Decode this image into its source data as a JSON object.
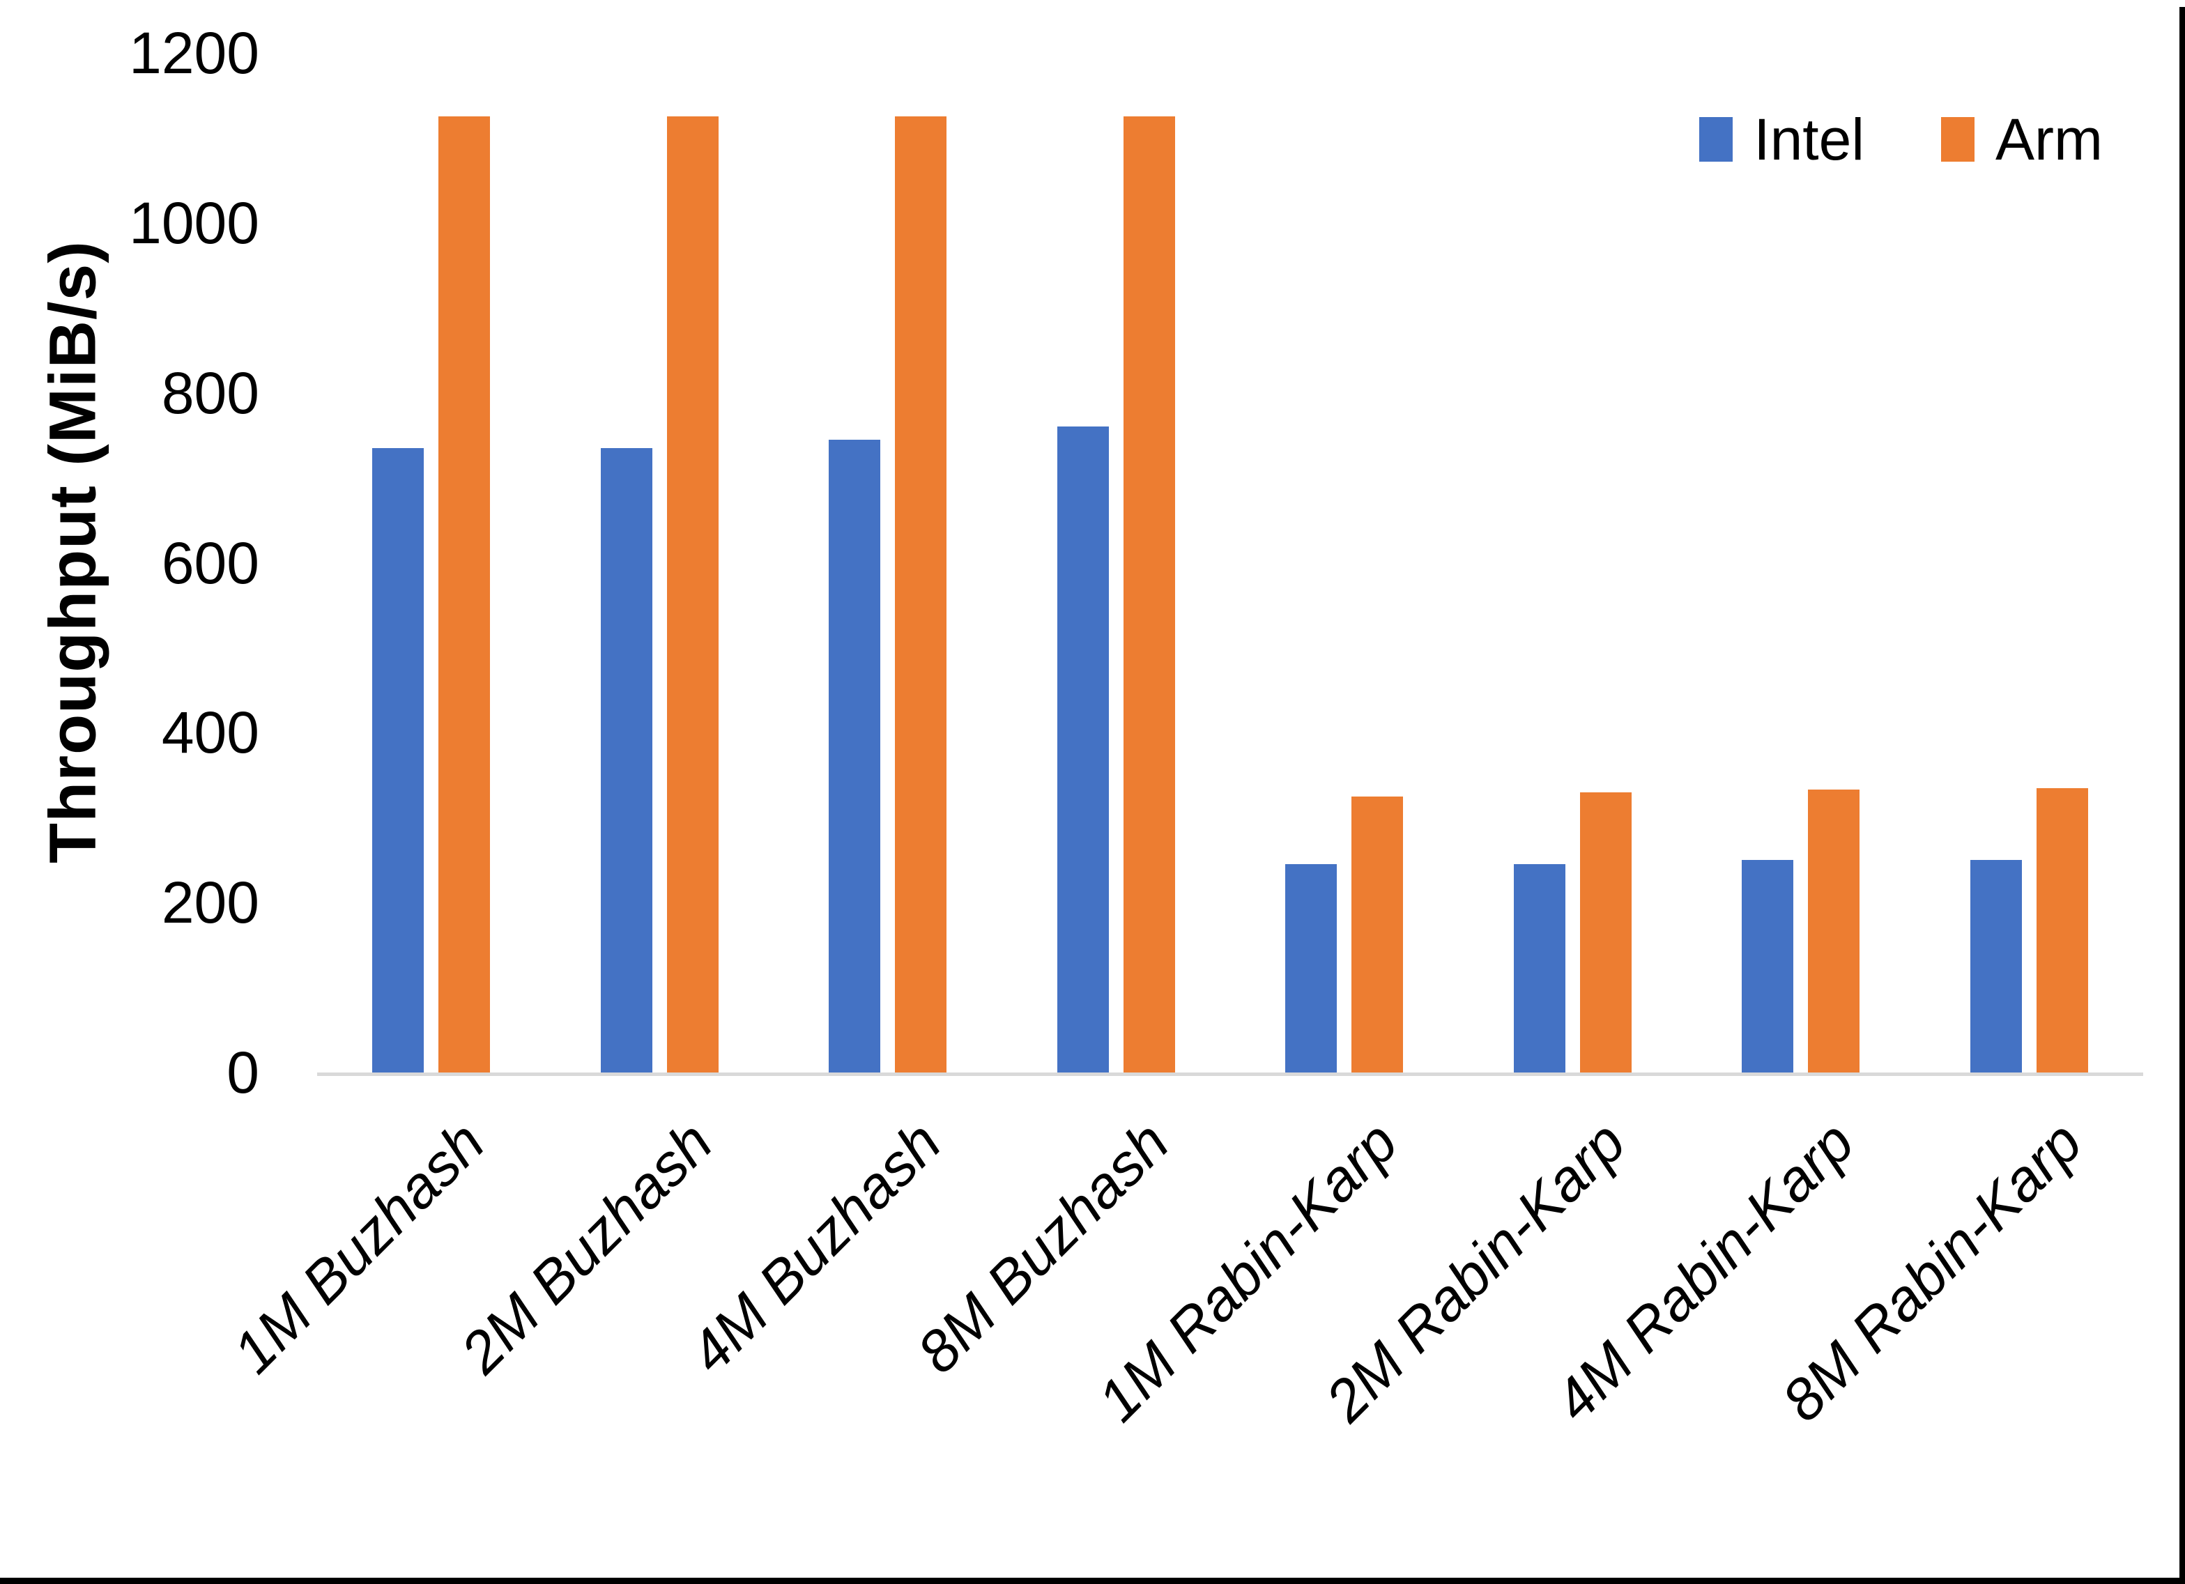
{
  "chart_data": {
    "type": "bar",
    "title": "",
    "xlabel": "",
    "ylabel": "Throughput (MiB/s)",
    "ylim": [
      0,
      1200
    ],
    "ytick_step": 200,
    "yticks": [
      0,
      200,
      400,
      600,
      800,
      1000,
      1200
    ],
    "grid": "off",
    "categories": [
      "1M Buzhash",
      "2M Buzhash",
      "4M Buzhash",
      "8M Buzhash",
      "1M Rabin-Karp",
      "2M Rabin-Karp",
      "4M Rabin-Karp",
      "8M Rabin-Karp"
    ],
    "series": [
      {
        "name": "Intel",
        "color": "#4472C4",
        "values": [
          735,
          735,
          745,
          760,
          245,
          245,
          250,
          250
        ]
      },
      {
        "name": "Arm",
        "color": "#ED7D31",
        "values": [
          1125,
          1125,
          1125,
          1125,
          325,
          330,
          333,
          335
        ]
      }
    ],
    "legend": {
      "position": "top-right",
      "entries": [
        "Intel",
        "Arm"
      ]
    },
    "colors": {
      "background": "#FFFFFF",
      "text": "#000000",
      "axis_line": "#D9D9D9",
      "window_edge": "#000000"
    }
  }
}
